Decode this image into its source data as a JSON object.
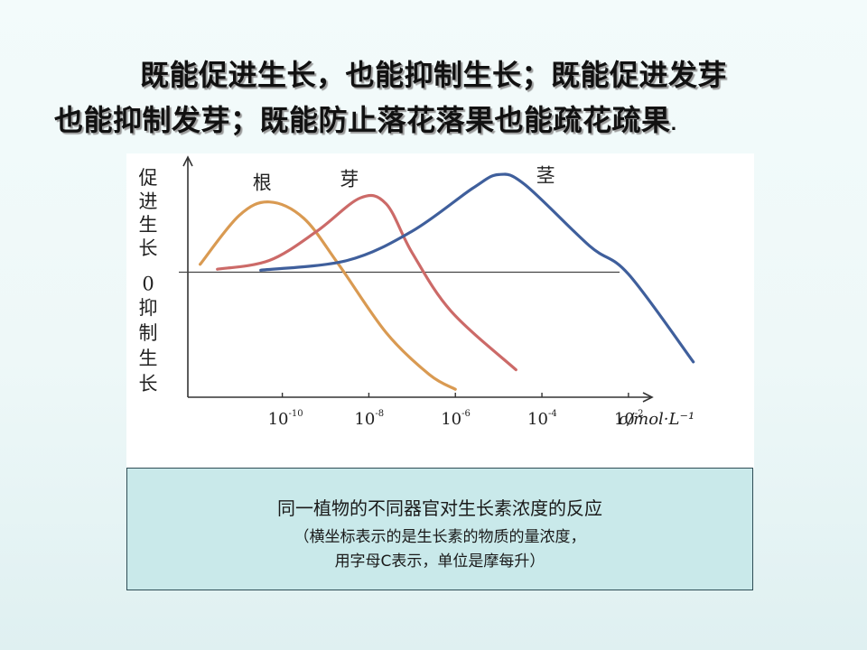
{
  "headline": {
    "line1": "既能促进生长，也能抑制生长；既能促进发芽",
    "line2": "也能抑制发芽；既能防止落花落果也能疏花疏果",
    "end_mark": "."
  },
  "caption": {
    "line1": "同一植物的不同器官对生长素浓度的反应",
    "line2": "（横坐标表示的是生长素的物质的量浓度，",
    "line3": "用字母C表示，单位是摩每升）"
  },
  "chart_data": {
    "type": "line",
    "y_axis": {
      "upper_label": [
        "促",
        "进",
        "生",
        "长"
      ],
      "zero_label": "0",
      "lower_label": [
        "抑",
        "制",
        "生",
        "长"
      ]
    },
    "x_axis": {
      "scale": "log",
      "unit_label": "c/mol·L⁻¹",
      "ticks": [
        {
          "base": "10",
          "exp": "-10",
          "value": -10
        },
        {
          "base": "10",
          "exp": "-8",
          "value": -8
        },
        {
          "base": "10",
          "exp": "-6",
          "value": -6
        },
        {
          "base": "10",
          "exp": "-4",
          "value": -4
        },
        {
          "base": "10",
          "exp": "-2",
          "value": -2
        }
      ],
      "xlim": [
        -12.1,
        0.8
      ]
    },
    "ylim": [
      -1.3,
      1.05
    ],
    "series": [
      {
        "name": "根",
        "color": "#d99a52",
        "points": [
          [
            -11.9,
            0.08
          ],
          [
            -11.0,
            0.58
          ],
          [
            -10.3,
            0.72
          ],
          [
            -9.5,
            0.55
          ],
          [
            -8.7,
            0.08
          ],
          [
            -7.6,
            -0.62
          ],
          [
            -6.6,
            -1.05
          ],
          [
            -6.0,
            -1.2
          ]
        ]
      },
      {
        "name": "芽",
        "color": "#cc6a68",
        "points": [
          [
            -11.5,
            0.03
          ],
          [
            -10.3,
            0.12
          ],
          [
            -9.2,
            0.42
          ],
          [
            -8.2,
            0.76
          ],
          [
            -7.6,
            0.7
          ],
          [
            -7.0,
            0.2
          ],
          [
            -6.1,
            -0.4
          ],
          [
            -4.6,
            -1.0
          ]
        ]
      },
      {
        "name": "茎",
        "color": "#3f5f9c",
        "points": [
          [
            -10.5,
            0.02
          ],
          [
            -8.5,
            0.12
          ],
          [
            -7.0,
            0.42
          ],
          [
            -5.6,
            0.86
          ],
          [
            -5.0,
            1.0
          ],
          [
            -4.4,
            0.9
          ],
          [
            -2.9,
            0.27
          ],
          [
            -2.0,
            -0.02
          ],
          [
            -0.5,
            -0.92
          ]
        ]
      }
    ]
  }
}
